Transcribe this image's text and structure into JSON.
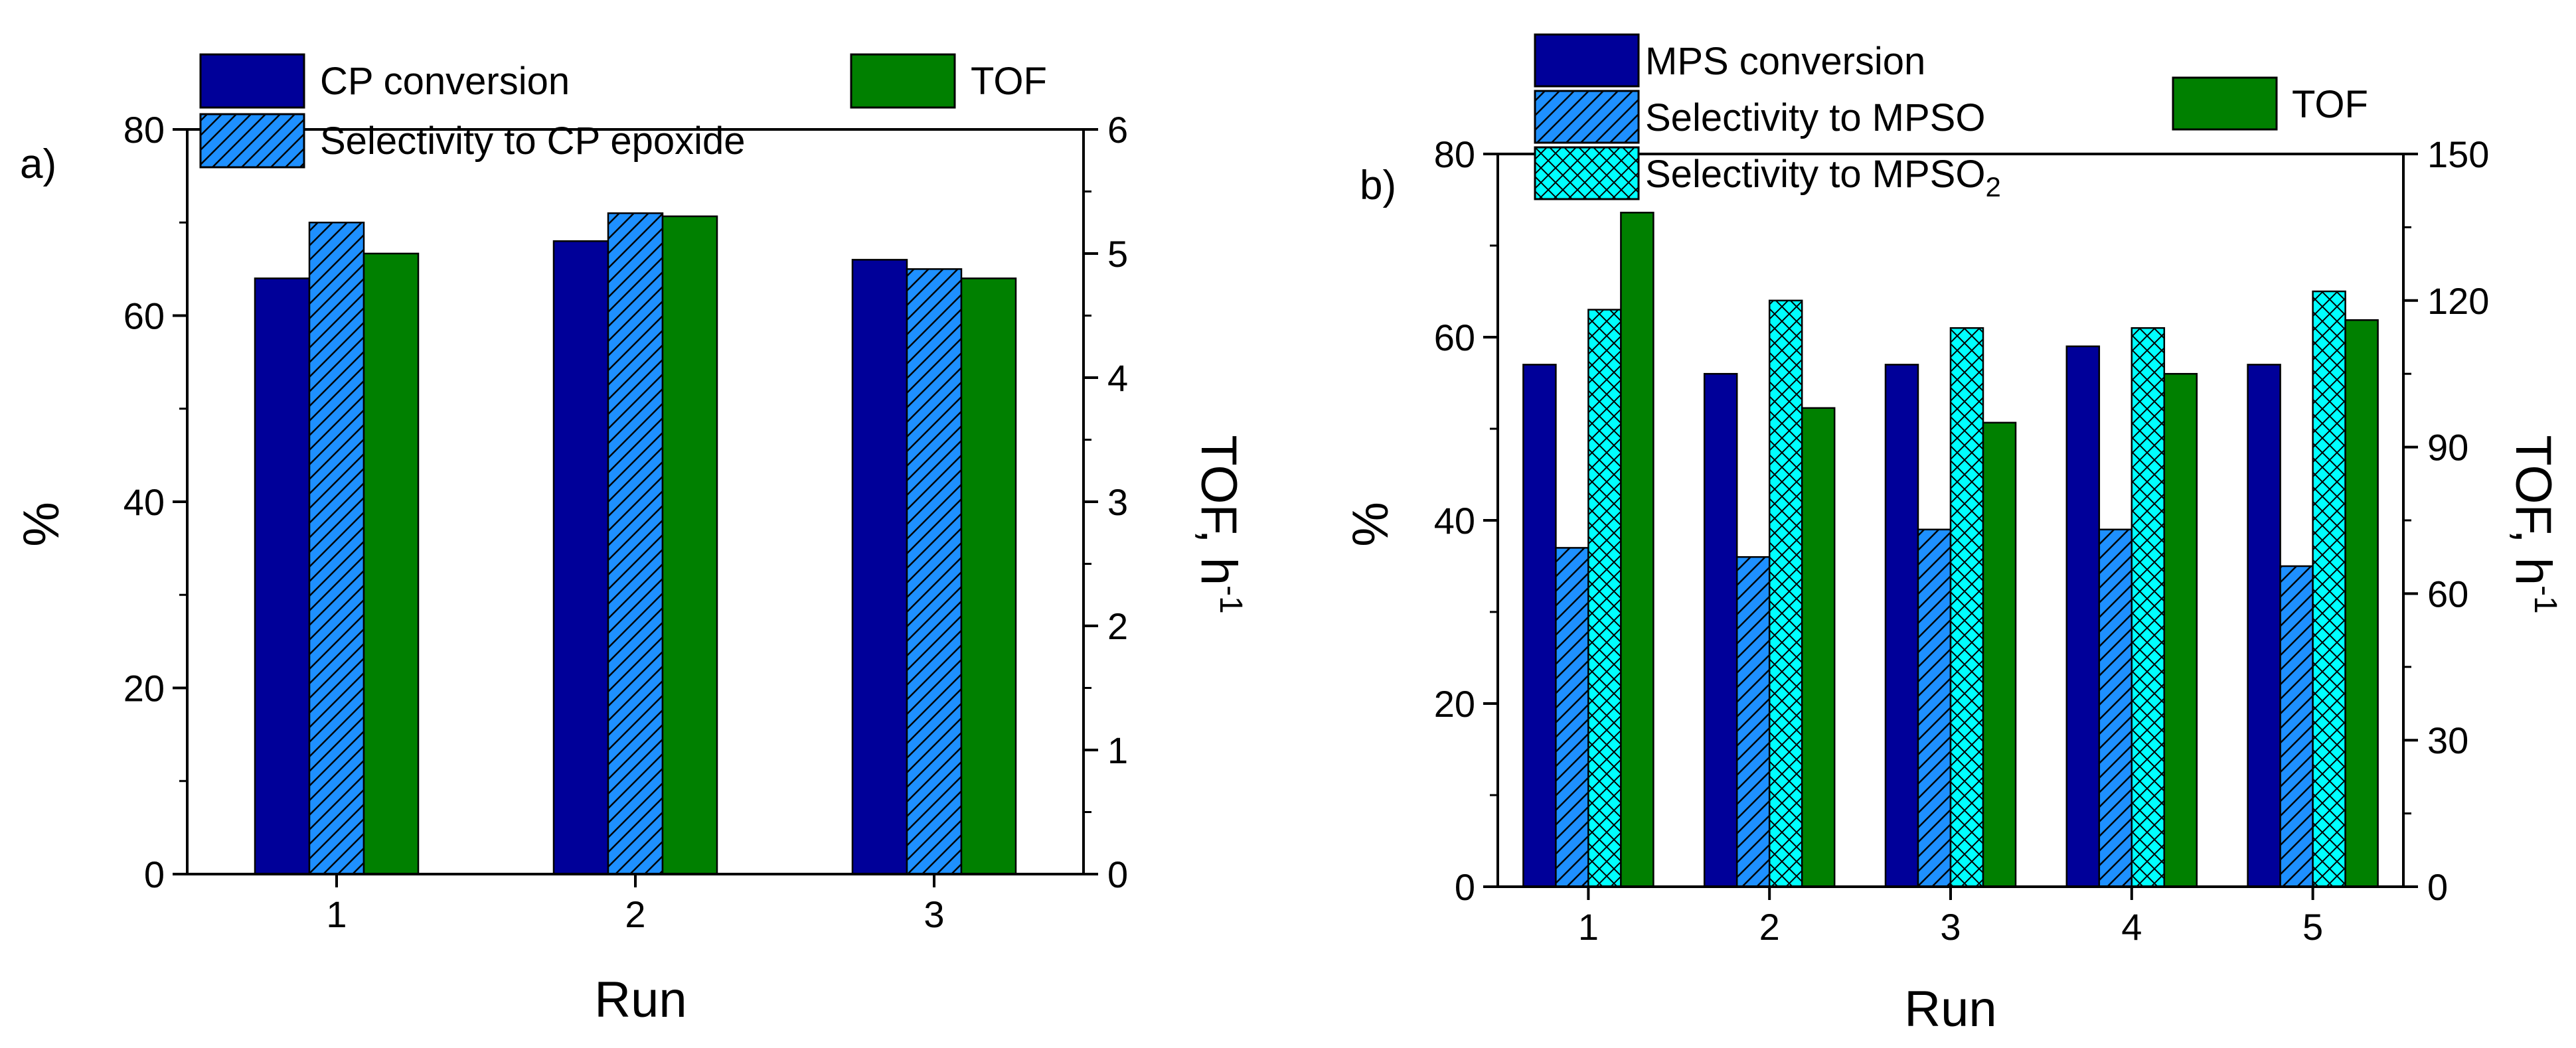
{
  "chart_data": [
    {
      "type": "bar",
      "panel_label": "a)",
      "xlabel": "Run",
      "ylabel": "%",
      "y2label_main": "TOF, h",
      "y2label_sup": "-1",
      "categories": [
        "1",
        "2",
        "3"
      ],
      "ylim": [
        0,
        80
      ],
      "yticks": [
        "0",
        "20",
        "40",
        "60",
        "80"
      ],
      "y2lim": [
        0,
        6
      ],
      "y2ticks": [
        "0",
        "1",
        "2",
        "3",
        "4",
        "5",
        "6"
      ],
      "series": [
        {
          "name": "CP conversion",
          "label_main": "CP conversion",
          "label_sub": "",
          "axis": "left",
          "color": "#000099",
          "pattern": "solid",
          "values": [
            64,
            68,
            66
          ]
        },
        {
          "name": "Selectivity to CP epoxide",
          "label_main": "Selectivity to CP epoxide",
          "label_sub": "",
          "axis": "left",
          "color": "#1e90ff",
          "pattern": "hatch",
          "values": [
            70,
            71,
            65
          ]
        },
        {
          "name": "TOF",
          "label_main": "TOF",
          "label_sub": "",
          "axis": "right",
          "color": "#008000",
          "pattern": "solid",
          "values": [
            5.0,
            5.3,
            4.8
          ]
        }
      ]
    },
    {
      "type": "bar",
      "panel_label": "b)",
      "xlabel": "Run",
      "ylabel": "%",
      "y2label_main": "TOF, h",
      "y2label_sup": "-1",
      "categories": [
        "1",
        "2",
        "3",
        "4",
        "5"
      ],
      "ylim": [
        0,
        80
      ],
      "yticks": [
        "0",
        "20",
        "40",
        "60",
        "80"
      ],
      "y2lim": [
        0,
        150
      ],
      "y2ticks": [
        "0",
        "30",
        "60",
        "90",
        "120",
        "150"
      ],
      "series": [
        {
          "name": "MPS conversion",
          "label_main": "MPS conversion",
          "label_sub": "",
          "axis": "left",
          "color": "#000099",
          "pattern": "solid",
          "values": [
            57,
            56,
            57,
            59,
            57
          ]
        },
        {
          "name": "Selectivity to MPSO",
          "label_main": "Selectivity to MPSO",
          "label_sub": "",
          "axis": "left",
          "color": "#1e90ff",
          "pattern": "hatch",
          "values": [
            37,
            36,
            39,
            39,
            35
          ]
        },
        {
          "name": "Selectivity to MPSO2",
          "label_main": "Selectivity to MPSO",
          "label_sub": "2",
          "axis": "left",
          "color": "#00ffff",
          "pattern": "crosshatch",
          "values": [
            63,
            64,
            61,
            61,
            65
          ]
        },
        {
          "name": "TOF",
          "label_main": "TOF",
          "label_sub": "",
          "axis": "right",
          "color": "#008000",
          "pattern": "solid",
          "values": [
            138,
            98,
            95,
            105,
            116
          ]
        }
      ]
    }
  ]
}
